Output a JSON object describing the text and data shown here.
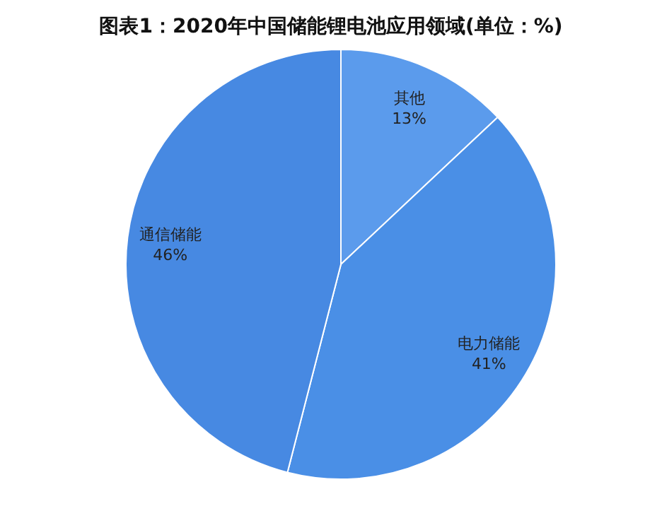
{
  "chart_data": {
    "type": "pie",
    "title": "图表1：2020年中国储能锂电池应用领域(单位：%)",
    "categories": [
      "其他",
      "电力储能",
      "通信储能"
    ],
    "values": [
      13,
      41,
      46
    ],
    "value_labels": [
      "13%",
      "41%",
      "46%"
    ],
    "colors": [
      "#5b9bec",
      "#4a8fe6",
      "#4789e2"
    ],
    "legend": false
  }
}
